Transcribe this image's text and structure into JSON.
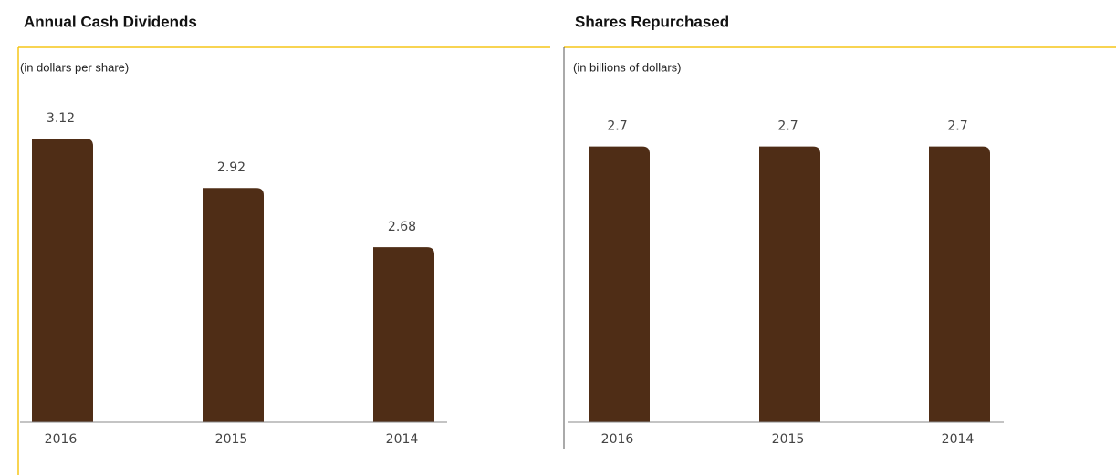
{
  "chart_data": [
    {
      "type": "bar",
      "title": "Annual Cash Dividends",
      "subtitle": "(in dollars per share)",
      "categories": [
        "2016",
        "2015",
        "2014"
      ],
      "values": [
        3.12,
        2.92,
        2.68
      ],
      "color": "#4f2d16",
      "ylim": [
        1.97,
        3.35
      ]
    },
    {
      "type": "bar",
      "title": "Shares Repurchased",
      "subtitle": "(in billions of dollars)",
      "categories": [
        "2016",
        "2015",
        "2014"
      ],
      "values": [
        2.7,
        2.7,
        2.7
      ],
      "color": "#4f2d16",
      "ylim": [
        0,
        3.33
      ]
    }
  ]
}
